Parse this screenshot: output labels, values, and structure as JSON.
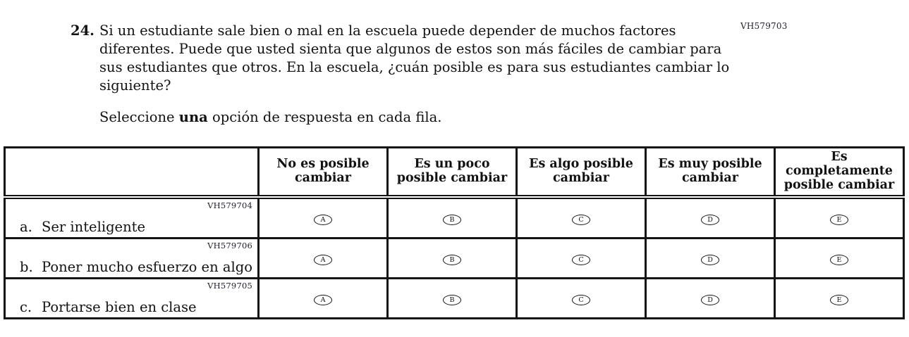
{
  "page": {
    "accession_code": "VH579703"
  },
  "question": {
    "number": "24.",
    "lines": [
      "Si un estudiante sale bien o mal en la escuela puede depender de muchos factores",
      "diferentes. Puede que usted sienta que algunos de estos son más fáciles de cambiar para",
      "sus estudiantes que otros. En la escuela, ¿cuán posible es para sus estudiantes cambiar lo",
      "siguiente?"
    ],
    "instruction": {
      "prefix": "Seleccione ",
      "bold": "una",
      "suffix": " opción de respuesta en cada fila."
    }
  },
  "table": {
    "choice_letters": [
      "A",
      "B",
      "C",
      "D",
      "E"
    ],
    "columns": [
      {
        "lines": [
          "No es posible",
          "cambiar"
        ]
      },
      {
        "lines": [
          "Es un poco",
          "posible cambiar"
        ]
      },
      {
        "lines": [
          "Es algo posible",
          "cambiar"
        ]
      },
      {
        "lines": [
          "Es muy posible",
          "cambiar"
        ]
      },
      {
        "lines": [
          "Es",
          "completamente",
          "posible cambiar"
        ]
      }
    ],
    "rows": [
      {
        "code": "VH579704",
        "prefix": "a.",
        "label": "Ser inteligente"
      },
      {
        "code": "VH579706",
        "prefix": "b.",
        "label": "Poner mucho esfuerzo en algo"
      },
      {
        "code": "VH579705",
        "prefix": "c.",
        "label": "Portarse bien en clase"
      }
    ]
  },
  "colors": {
    "text": "#121212",
    "border": "#151515",
    "background": "#ffffff"
  }
}
